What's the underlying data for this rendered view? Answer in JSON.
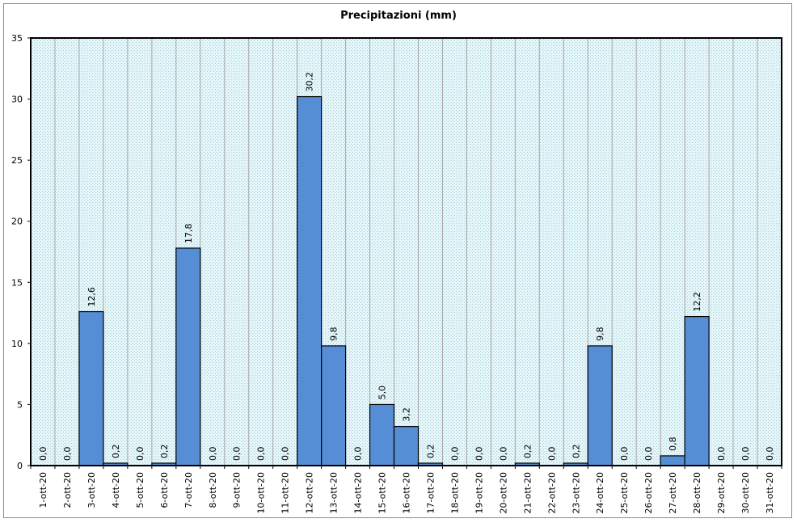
{
  "chart_data": {
    "type": "bar",
    "title": "Precipitazioni (mm)",
    "xlabel": "",
    "ylabel": "",
    "ylim": [
      0,
      35
    ],
    "yticks": [
      0,
      5,
      10,
      15,
      20,
      25,
      30,
      35
    ],
    "grid": true,
    "legend": "none",
    "bar_color": "#558ed5",
    "plot_background": "#dcf0f5",
    "categories": [
      "1-ott-20",
      "2-ott-20",
      "3-ott-20",
      "4-ott-20",
      "5-ott-20",
      "6-ott-20",
      "7-ott-20",
      "8-ott-20",
      "9-ott-20",
      "10-ott-20",
      "11-ott-20",
      "12-ott-20",
      "13-ott-20",
      "14-ott-20",
      "15-ott-20",
      "16-ott-20",
      "17-ott-20",
      "18-ott-20",
      "19-ott-20",
      "20-ott-20",
      "21-ott-20",
      "22-ott-20",
      "23-ott-20",
      "24-ott-20",
      "25-ott-20",
      "26-ott-20",
      "27-ott-20",
      "28-ott-20",
      "29-ott-20",
      "30-ott-20",
      "31-ott-20"
    ],
    "values": [
      0.0,
      0.0,
      12.6,
      0.2,
      0.0,
      0.2,
      17.8,
      0.0,
      0.0,
      0.0,
      0.0,
      30.2,
      9.8,
      0.0,
      5.0,
      3.2,
      0.2,
      0.0,
      0.0,
      0.0,
      0.2,
      0.0,
      0.2,
      9.8,
      0.0,
      0.0,
      0.8,
      12.2,
      0.0,
      0.0,
      0.0
    ],
    "data_labels": [
      "0,0",
      "0,0",
      "12,6",
      "0,2",
      "0,0",
      "0,2",
      "17,8",
      "0,0",
      "0,0",
      "0,0",
      "0,0",
      "30,2",
      "9,8",
      "0,0",
      "5,0",
      "3,2",
      "0,2",
      "0,0",
      "0,0",
      "0,0",
      "0,2",
      "0,0",
      "0,2",
      "9,8",
      "0,0",
      "0,0",
      "0,8",
      "12,2",
      "0,0",
      "0,0",
      "0,0"
    ]
  }
}
